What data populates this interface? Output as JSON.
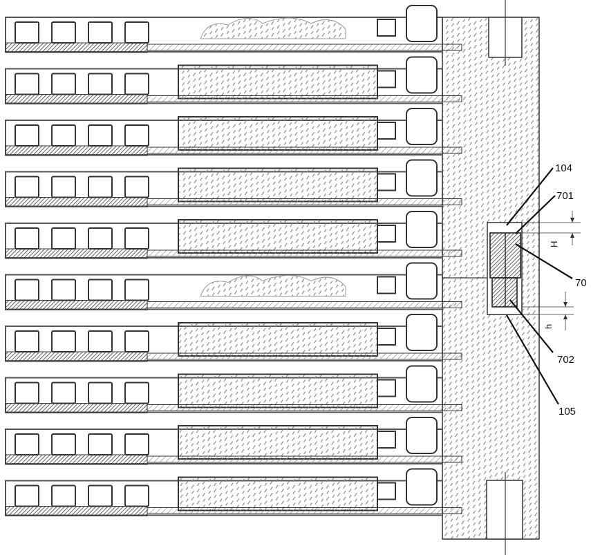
{
  "diagram": {
    "repeating_units": 10,
    "colors": {
      "line": "#555555",
      "outline": "#333333",
      "rod_fill": "#6e6e6e",
      "hatch": "#8a8a8a",
      "background": "#ffffff"
    }
  },
  "labels": {
    "l104": "104",
    "l701": "701",
    "l70": "70",
    "l702": "702",
    "l105": "105"
  },
  "dimensions": {
    "upper": "H",
    "lower": "h"
  }
}
